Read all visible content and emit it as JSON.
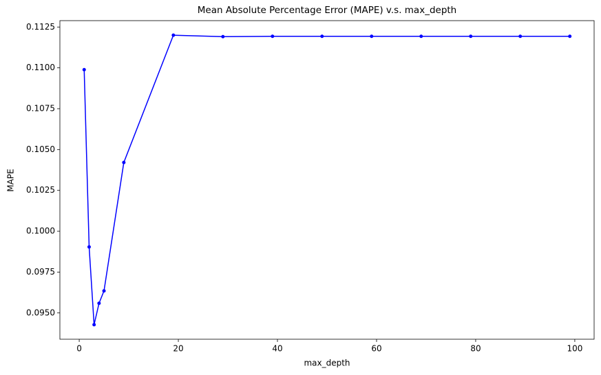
{
  "chart_data": {
    "type": "line",
    "title": "Mean Absolute Percentage Error (MAPE) v.s. max_depth",
    "x_label": "max_depth",
    "y_label": "MAPE",
    "x": [
      1,
      2,
      3,
      4,
      5,
      9,
      19,
      29,
      39,
      49,
      59,
      69,
      79,
      89,
      99
    ],
    "series": [
      {
        "name": "MAPE",
        "color": "#0000ff",
        "values": [
          0.10989,
          0.09904,
          0.09428,
          0.09559,
          0.09635,
          0.10421,
          0.112,
          0.11191,
          0.11193,
          0.11193,
          0.11193,
          0.11193,
          0.11193,
          0.11193,
          0.11193
        ]
      }
    ],
    "xlim": [
      -3.9,
      103.9
    ],
    "xticks": [
      0,
      20,
      40,
      60,
      80,
      100
    ],
    "ylim": [
      0.09339,
      0.11289
    ],
    "yticks": [
      {
        "value": 0.095,
        "label": "0.0950"
      },
      0.0975,
      {
        "value": 0.1,
        "label": "0.1000"
      },
      0.1025,
      {
        "value": 0.105,
        "label": "0.1050"
      },
      0.1075,
      {
        "value": 0.11,
        "label": "0.1100"
      },
      0.1125
    ],
    "grid": false
  }
}
